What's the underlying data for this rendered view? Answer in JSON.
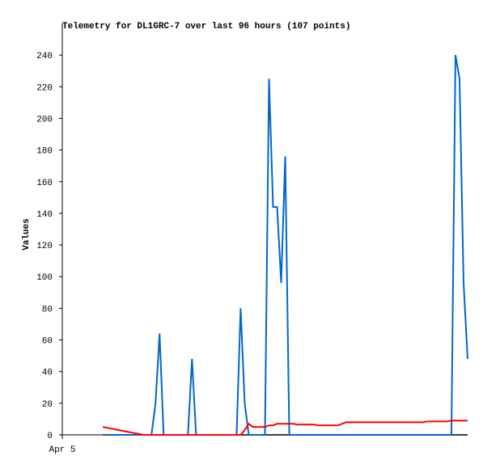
{
  "chart_data": {
    "type": "line",
    "title": "Telemetry for DL1GRC-7 over last 96 hours (107 points)",
    "y_label": "Values",
    "categories": [
      "Apr 5",
      null,
      null,
      null,
      null,
      null,
      null,
      null,
      null,
      null,
      null,
      null,
      null,
      null,
      null,
      null,
      null,
      null,
      null,
      null,
      null,
      null,
      null,
      null,
      null,
      null,
      null,
      null,
      null,
      null,
      null,
      null,
      null,
      null,
      null,
      null,
      null,
      null,
      null,
      null,
      null,
      null,
      null,
      null,
      null,
      null,
      null,
      null,
      null,
      null,
      null,
      null,
      null,
      null,
      null,
      null,
      null,
      null,
      null,
      null,
      null,
      null,
      null,
      null,
      null,
      null,
      null,
      null,
      null,
      null,
      null,
      null,
      null,
      null,
      null,
      null,
      null,
      null,
      null,
      null,
      null,
      null,
      null,
      null,
      null,
      null,
      null,
      null,
      null,
      null,
      null,
      null,
      null,
      null,
      null,
      null,
      null,
      null,
      null,
      null,
      null
    ],
    "series": [
      {
        "color": "#000000",
        "values": [
          null,
          null,
          null,
          null,
          null,
          null,
          null,
          null,
          null,
          null,
          0,
          0,
          0,
          0,
          0,
          0,
          0,
          0,
          0,
          0,
          0,
          0,
          0,
          0,
          0,
          0,
          0,
          0,
          0,
          0,
          0,
          0,
          0,
          0,
          0,
          0,
          0,
          0,
          0,
          0,
          0,
          0,
          0,
          0,
          0,
          0,
          0,
          0,
          0,
          0,
          0,
          0,
          0,
          0,
          0,
          0,
          0,
          0,
          0,
          0,
          0,
          0,
          0,
          0,
          0,
          0,
          0,
          0,
          0,
          0,
          0,
          0,
          0,
          0,
          0,
          0,
          0,
          0,
          0,
          0,
          0,
          0,
          0,
          0,
          0,
          0,
          0,
          0,
          0,
          0,
          0,
          0,
          0,
          0,
          0,
          0,
          0,
          0,
          0,
          0,
          0
        ]
      },
      {
        "color": "#0066cc",
        "values": [
          null,
          null,
          null,
          null,
          null,
          null,
          null,
          null,
          null,
          null,
          0,
          0,
          0,
          0,
          0,
          0,
          0,
          0,
          0,
          0,
          0,
          0,
          0,
          20,
          64,
          0,
          0,
          0,
          0,
          0,
          0,
          0,
          48,
          0,
          0,
          0,
          0,
          0,
          0,
          0,
          0,
          0,
          0,
          0,
          80,
          20,
          0,
          0,
          0,
          0,
          0,
          225,
          144,
          144,
          96,
          176,
          0,
          0,
          0,
          0,
          0,
          0,
          0,
          0,
          0,
          0,
          0,
          0,
          0,
          0,
          0,
          0,
          0,
          0,
          0,
          0,
          0,
          0,
          0,
          0,
          0,
          0,
          0,
          0,
          0,
          0,
          0,
          0,
          0,
          0,
          0,
          0,
          0,
          0,
          0,
          0,
          0,
          240,
          225,
          96,
          48
        ]
      },
      {
        "color": "#ff0000",
        "values": [
          null,
          null,
          null,
          null,
          null,
          null,
          null,
          null,
          null,
          null,
          5,
          4.5,
          4,
          3.5,
          3,
          2.5,
          2,
          1.5,
          1,
          0.5,
          0,
          0,
          0,
          0,
          0,
          0,
          0,
          0,
          0,
          0,
          0,
          0,
          0,
          0,
          0,
          0,
          0,
          0,
          0,
          0,
          0,
          0,
          0,
          0,
          0,
          3,
          7,
          5,
          5,
          5,
          5,
          6,
          6,
          7,
          7,
          7,
          7,
          7,
          6.5,
          6.5,
          6.5,
          6.5,
          6.5,
          6,
          6,
          6,
          6,
          6,
          6,
          7,
          8,
          8,
          8,
          8,
          8,
          8,
          8,
          8,
          8,
          8,
          8,
          8,
          8,
          8,
          8,
          8,
          8,
          8,
          8,
          8,
          8.5,
          8.5,
          8.5,
          8.5,
          8.5,
          8.5,
          9,
          9,
          9,
          9,
          9
        ]
      }
    ],
    "ylim": [
      0,
      260
    ],
    "yticks": [
      0,
      20,
      40,
      60,
      80,
      100,
      120,
      140,
      160,
      180,
      200,
      220,
      240
    ],
    "grid": false
  }
}
